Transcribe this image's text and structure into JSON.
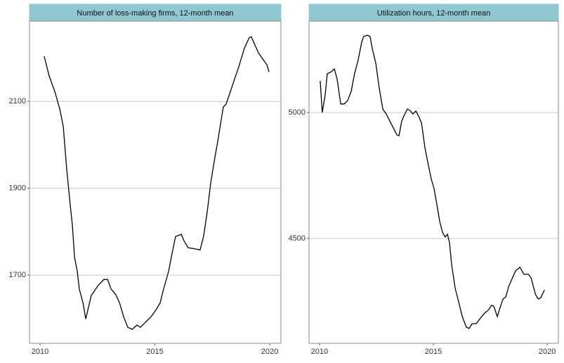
{
  "chart_data": [
    {
      "type": "line",
      "title": "Number of loss-making firms, 12-month mean",
      "color": "#000000",
      "grid": true,
      "x": [
        2010.18,
        2010.4,
        2010.64,
        2010.86,
        2011.01,
        2011.16,
        2011.31,
        2011.41,
        2011.5,
        2011.62,
        2011.71,
        2011.87,
        2011.99,
        2012.23,
        2012.54,
        2012.78,
        2012.94,
        2013.09,
        2013.3,
        2013.46,
        2013.64,
        2013.82,
        2014.01,
        2014.22,
        2014.37,
        2014.62,
        2014.83,
        2015.05,
        2015.23,
        2015.38,
        2015.6,
        2015.75,
        2015.9,
        2016.15,
        2016.27,
        2016.45,
        2016.7,
        2016.97,
        2017.13,
        2017.28,
        2017.43,
        2017.58,
        2017.74,
        2017.89,
        2017.98,
        2018.1,
        2018.29,
        2018.44,
        2018.65,
        2018.9,
        2019.11,
        2019.2,
        2019.33,
        2019.51,
        2019.72,
        2019.88,
        2019.97
      ],
      "values": [
        2204,
        2158,
        2123,
        2082,
        2042,
        1944,
        1863,
        1814,
        1741,
        1709,
        1668,
        1636,
        1599,
        1653,
        1677,
        1690,
        1690,
        1668,
        1655,
        1636,
        1604,
        1580,
        1575,
        1585,
        1580,
        1593,
        1604,
        1620,
        1636,
        1668,
        1709,
        1750,
        1789,
        1794,
        1779,
        1763,
        1761,
        1758,
        1791,
        1847,
        1912,
        1961,
        2009,
        2058,
        2087,
        2094,
        2123,
        2147,
        2179,
        2223,
        2247,
        2249,
        2233,
        2212,
        2196,
        2184,
        2168
      ],
      "xlim": [
        2009.54,
        2020.49
      ],
      "ylim": [
        1543,
        2285
      ],
      "xticks": [
        2010,
        2015,
        2020
      ],
      "yticks": [
        1700,
        1900,
        2100
      ]
    },
    {
      "type": "line",
      "title": "Utilization hours, 12-month mean",
      "color": "#000000",
      "grid": true,
      "x": [
        2010.03,
        2010.12,
        2010.25,
        2010.34,
        2010.52,
        2010.65,
        2010.77,
        2010.93,
        2011.08,
        2011.23,
        2011.39,
        2011.54,
        2011.7,
        2011.85,
        2011.94,
        2012.1,
        2012.22,
        2012.31,
        2012.47,
        2012.62,
        2012.78,
        2012.93,
        2013.09,
        2013.24,
        2013.4,
        2013.49,
        2013.61,
        2013.7,
        2013.86,
        2013.98,
        2014.1,
        2014.23,
        2014.35,
        2014.48,
        2014.63,
        2014.78,
        2014.91,
        2015.03,
        2015.15,
        2015.28,
        2015.4,
        2015.52,
        2015.62,
        2015.71,
        2015.8,
        2015.96,
        2016.08,
        2016.27,
        2016.45,
        2016.57,
        2016.7,
        2016.88,
        2017.07,
        2017.25,
        2017.41,
        2017.56,
        2017.65,
        2017.81,
        2017.93,
        2018.06,
        2018.18,
        2018.3,
        2018.43,
        2018.61,
        2018.8,
        2018.98,
        2019.17,
        2019.29,
        2019.48,
        2019.6,
        2019.72,
        2019.88
      ],
      "values": [
        5126,
        5000,
        5070,
        5154,
        5162,
        5173,
        5134,
        5034,
        5034,
        5047,
        5084,
        5154,
        5209,
        5279,
        5302,
        5307,
        5302,
        5257,
        5196,
        5098,
        5014,
        4994,
        4966,
        4939,
        4911,
        4908,
        4966,
        4986,
        5014,
        5008,
        4994,
        5006,
        4986,
        4958,
        4860,
        4791,
        4735,
        4698,
        4637,
        4567,
        4525,
        4506,
        4517,
        4483,
        4399,
        4302,
        4260,
        4190,
        4148,
        4143,
        4162,
        4162,
        4184,
        4204,
        4215,
        4235,
        4232,
        4190,
        4226,
        4260,
        4268,
        4307,
        4335,
        4372,
        4386,
        4358,
        4358,
        4344,
        4279,
        4260,
        4265,
        4296
      ],
      "xlim": [
        2009.54,
        2020.49
      ],
      "ylim": [
        4084,
        5363
      ],
      "xticks": [
        2010,
        2015,
        2020
      ],
      "yticks": [
        4500,
        5000
      ]
    }
  ]
}
